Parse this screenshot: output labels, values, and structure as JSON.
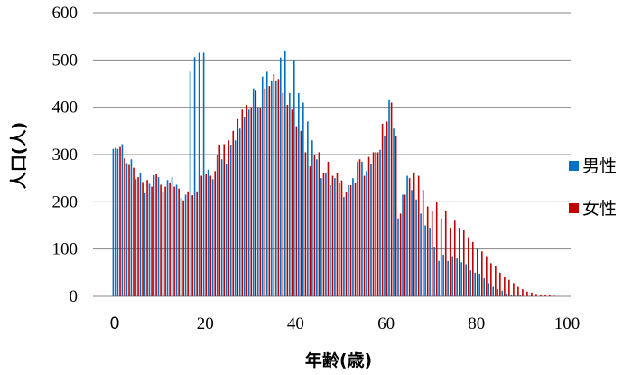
{
  "chart_data": {
    "type": "bar",
    "title": "",
    "xlabel": "年齢(歳)",
    "ylabel": "人口(人)",
    "xlim": [
      0,
      100
    ],
    "ylim": [
      0,
      600
    ],
    "x_ticks": [
      "0",
      "20",
      "40",
      "60",
      "80",
      "100"
    ],
    "y_ticks": [
      "0",
      "100",
      "200",
      "300",
      "400",
      "500",
      "600"
    ],
    "grid": "horizontal",
    "legend_position": "right",
    "ages": [
      0,
      1,
      2,
      3,
      4,
      5,
      6,
      7,
      8,
      9,
      10,
      11,
      12,
      13,
      14,
      15,
      16,
      17,
      18,
      19,
      20,
      21,
      22,
      23,
      24,
      25,
      26,
      27,
      28,
      29,
      30,
      31,
      32,
      33,
      34,
      35,
      36,
      37,
      38,
      39,
      40,
      41,
      42,
      43,
      44,
      45,
      46,
      47,
      48,
      49,
      50,
      51,
      52,
      53,
      54,
      55,
      56,
      57,
      58,
      59,
      60,
      61,
      62,
      63,
      64,
      65,
      66,
      67,
      68,
      69,
      70,
      71,
      72,
      73,
      74,
      75,
      76,
      77,
      78,
      79,
      80,
      81,
      82,
      83,
      84,
      85,
      86,
      87,
      88,
      89,
      90,
      91,
      92,
      93,
      94,
      95,
      96,
      97,
      98,
      99,
      100
    ],
    "series": [
      {
        "name": "男性",
        "color": "#0070C0",
        "values": [
          312,
          312,
          322,
          282,
          290,
          248,
          262,
          218,
          238,
          256,
          252,
          222,
          246,
          252,
          236,
          208,
          215,
          475,
          506,
          515,
          515,
          268,
          248,
          300,
          290,
          280,
          320,
          330,
          355,
          380,
          395,
          440,
          400,
          465,
          475,
          455,
          455,
          505,
          520,
          430,
          500,
          430,
          410,
          370,
          330,
          290,
          250,
          260,
          235,
          250,
          240,
          210,
          235,
          250,
          285,
          285,
          265,
          280,
          305,
          310,
          340,
          415,
          355,
          165,
          215,
          255,
          225,
          205,
          175,
          150,
          145,
          105,
          75,
          88,
          75,
          85,
          80,
          72,
          68,
          55,
          50,
          48,
          38,
          28,
          20,
          15,
          12,
          6,
          4,
          3,
          2,
          1,
          1,
          0,
          0,
          0,
          0,
          0,
          0,
          0,
          0
        ]
      },
      {
        "name": "女性",
        "color": "#C00000",
        "values": [
          314,
          316,
          292,
          278,
          272,
          252,
          242,
          246,
          232,
          258,
          236,
          232,
          241,
          232,
          228,
          203,
          222,
          214,
          222,
          255,
          258,
          255,
          265,
          320,
          322,
          330,
          350,
          375,
          395,
          405,
          400,
          435,
          398,
          440,
          445,
          470,
          460,
          430,
          405,
          395,
          360,
          350,
          305,
          275,
          300,
          305,
          260,
          285,
          255,
          260,
          245,
          220,
          235,
          240,
          290,
          255,
          295,
          305,
          305,
          365,
          370,
          410,
          340,
          175,
          215,
          250,
          262,
          255,
          225,
          190,
          180,
          200,
          165,
          180,
          145,
          160,
          145,
          140,
          125,
          115,
          100,
          95,
          85,
          70,
          65,
          50,
          42,
          35,
          28,
          20,
          15,
          10,
          8,
          5,
          4,
          3,
          2,
          1,
          0,
          0,
          0
        ]
      }
    ]
  }
}
